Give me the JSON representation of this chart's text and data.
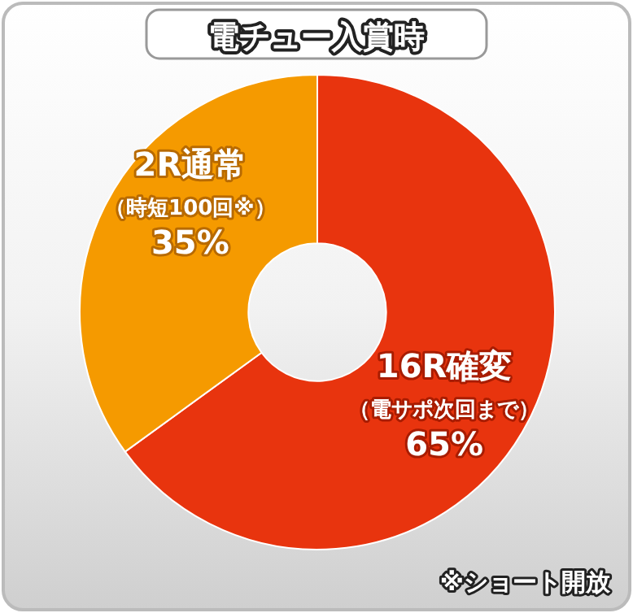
{
  "chart_data": {
    "type": "donut",
    "title": "電チュー入賞時",
    "categories": [
      "16R確変（電サポ次回まで）",
      "2R通常（時短100回※）"
    ],
    "values": [
      65,
      35
    ],
    "colors": [
      "#e8340e",
      "#f59a00"
    ],
    "value_labels": [
      "65%",
      "35%"
    ],
    "data_labels": true,
    "legend": false,
    "annotations": [
      "※ショート開放"
    ]
  }
}
